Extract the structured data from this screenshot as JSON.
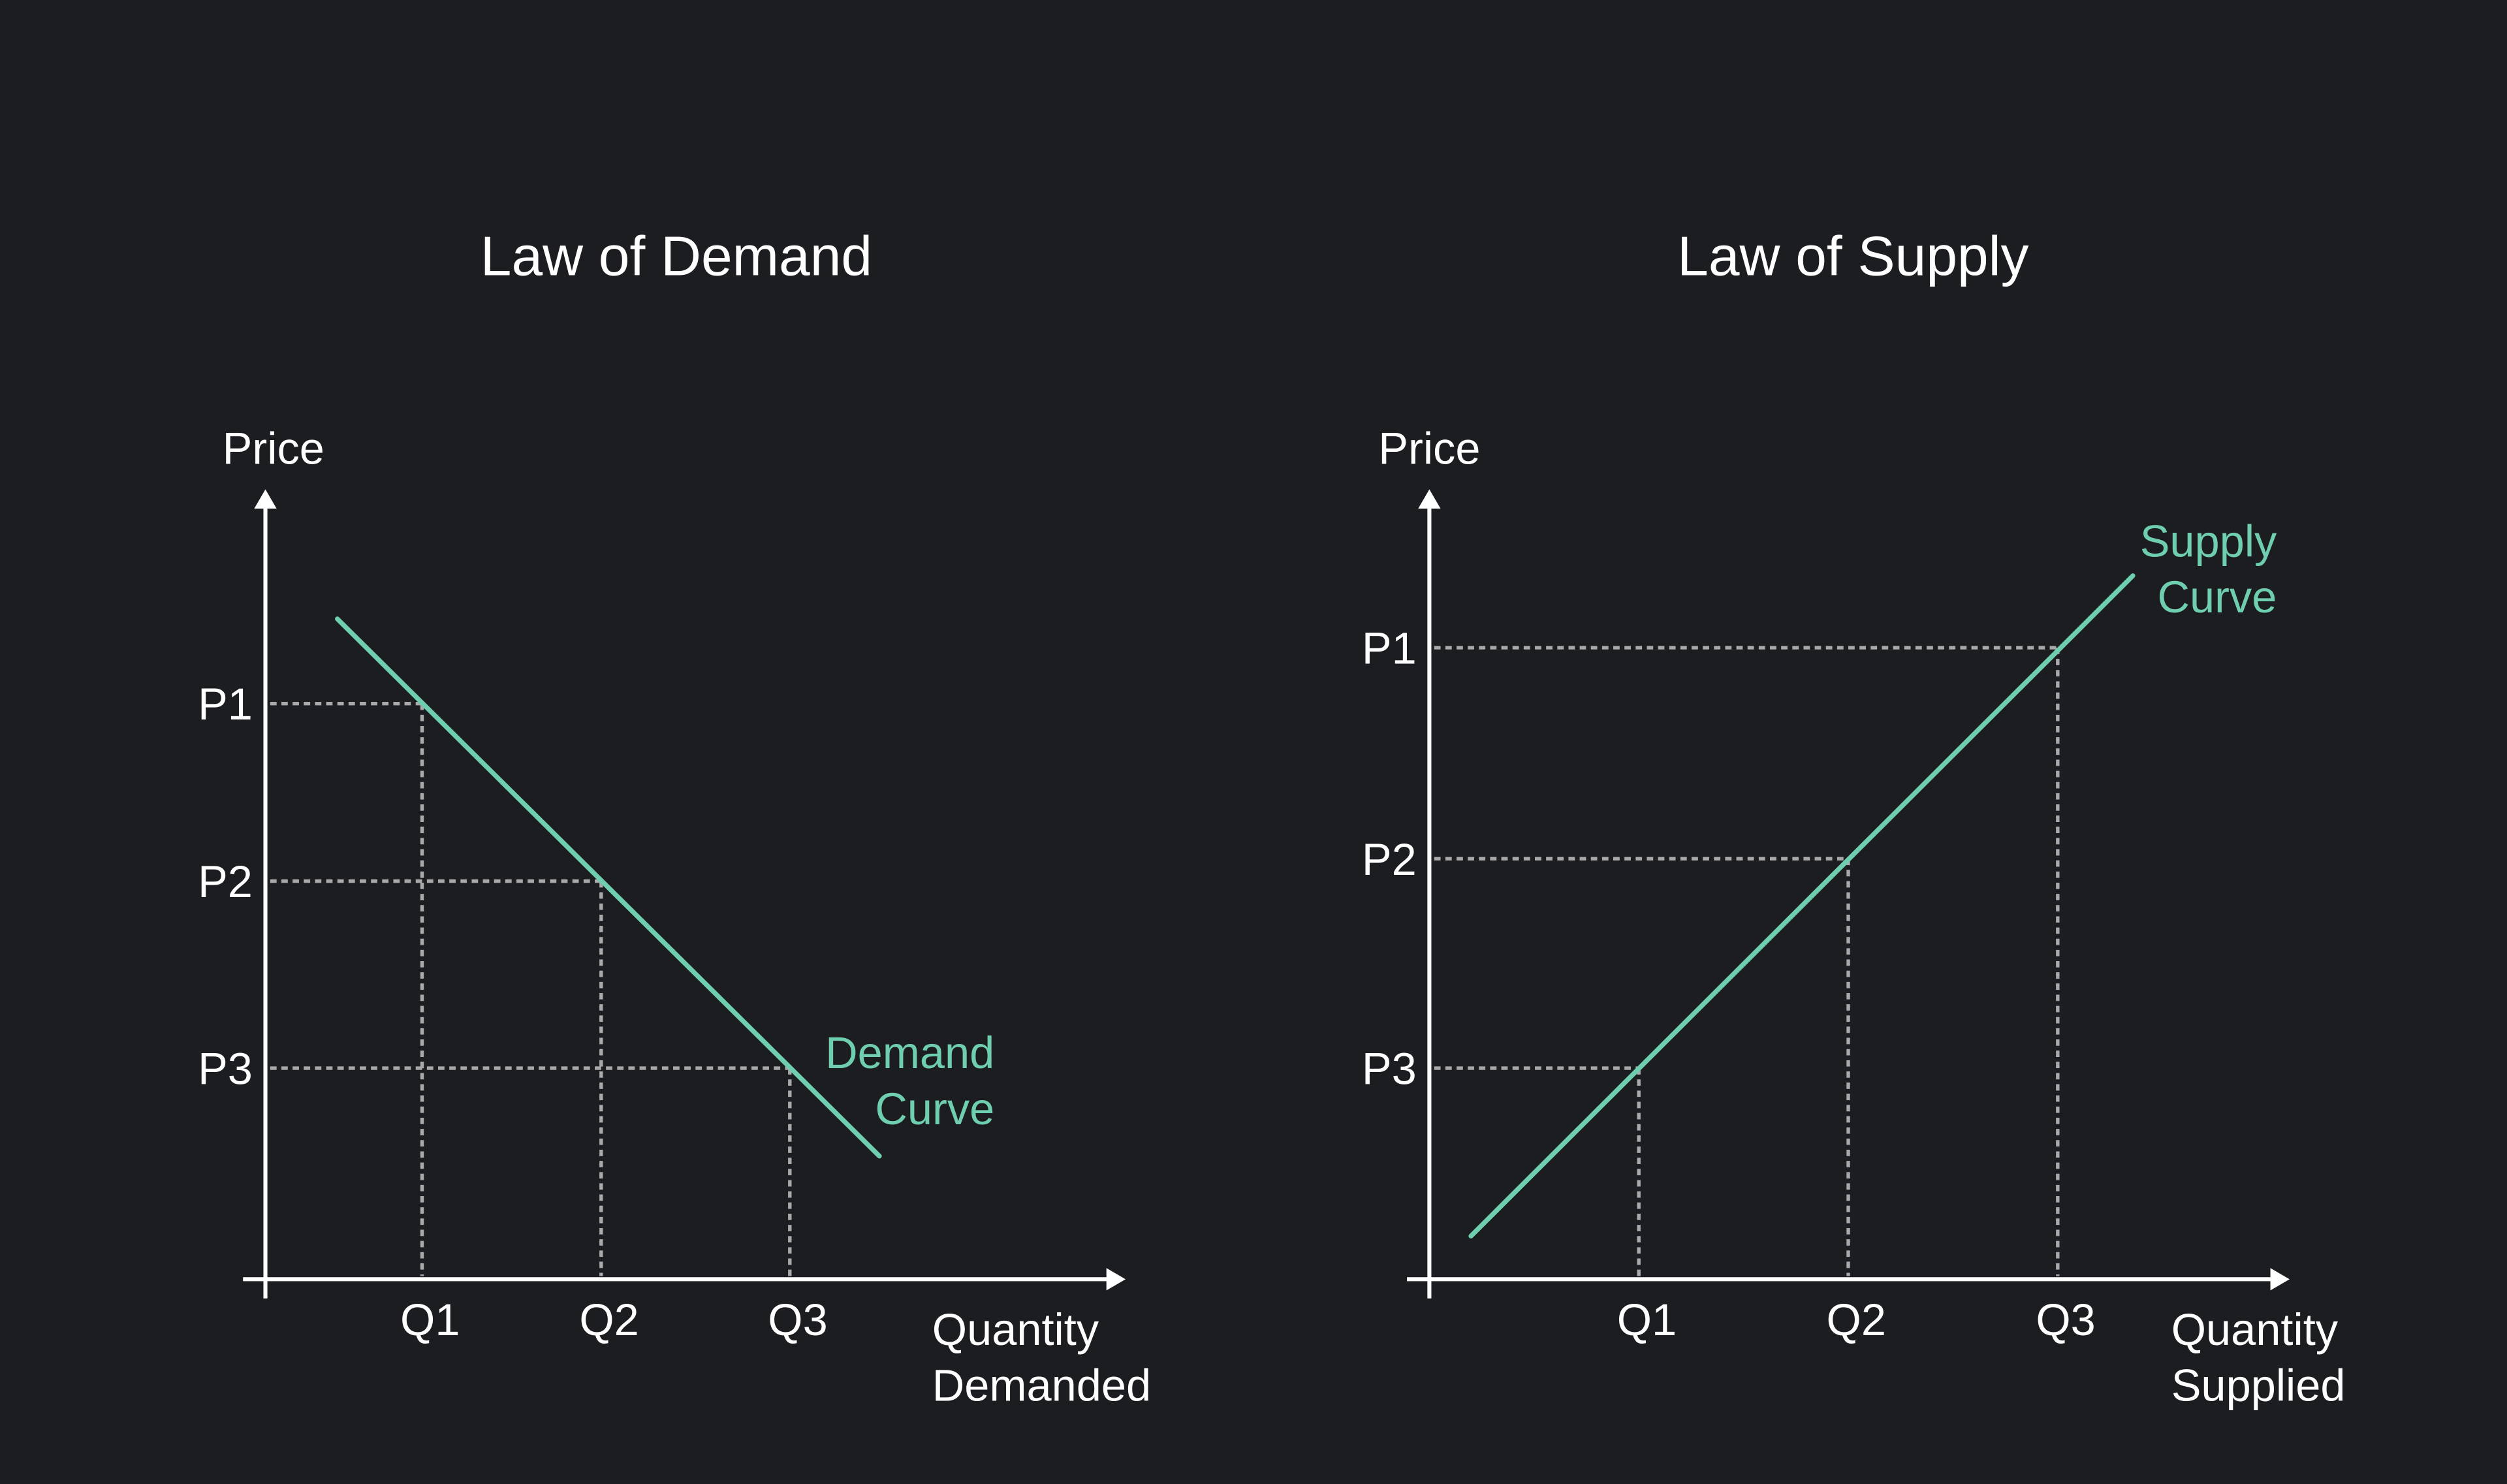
{
  "colors": {
    "background": "#1c1d21",
    "axis": "#ffffff",
    "curve": "#6fcdb0",
    "guide": "#a9a9ab"
  },
  "chart_data": [
    {
      "type": "line",
      "title": "Law of Demand",
      "ylabel": "Price",
      "xlabel": [
        "Quantity",
        "Demanded"
      ],
      "x_ticks": [
        "Q1",
        "Q2",
        "Q3"
      ],
      "y_ticks": [
        "P1",
        "P2",
        "P3"
      ],
      "series": [
        {
          "name": [
            "Demand",
            "Curve"
          ],
          "trend": "downward",
          "points": [
            [
              "Q1",
              "P1"
            ],
            [
              "Q2",
              "P2"
            ],
            [
              "Q3",
              "P3"
            ]
          ]
        }
      ],
      "guides": "dotted",
      "grid": false
    },
    {
      "type": "line",
      "title": "Law of Supply",
      "ylabel": "Price",
      "xlabel": [
        "Quantity",
        "Supplied"
      ],
      "x_ticks": [
        "Q1",
        "Q2",
        "Q3"
      ],
      "y_ticks": [
        "P1",
        "P2",
        "P3"
      ],
      "series": [
        {
          "name": [
            "Supply",
            "Curve"
          ],
          "trend": "upward",
          "points": [
            [
              "Q1",
              "P3"
            ],
            [
              "Q2",
              "P2"
            ],
            [
              "Q3",
              "P1"
            ]
          ]
        }
      ],
      "guides": "dotted",
      "grid": false
    }
  ]
}
